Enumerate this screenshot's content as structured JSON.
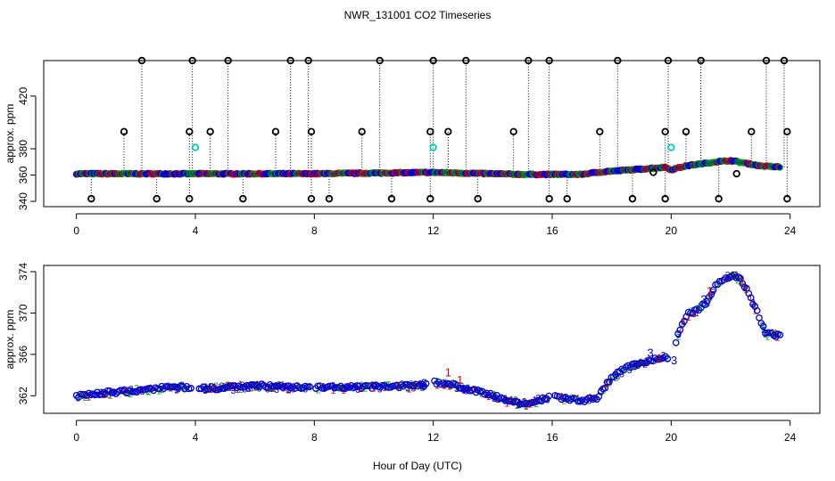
{
  "chart_data": {
    "title": "NWR_131001  CO2 Timeseries",
    "xlabel": "Hour of Day (UTC)",
    "xticks": [
      0,
      4,
      8,
      12,
      16,
      20,
      24
    ],
    "xlim": [
      -1.1,
      25
    ],
    "colors": {
      "series_1": "#d40000",
      "series_2": "#00a000",
      "series_3": "#0000cc",
      "flagged": "#00c8c8",
      "spike": "#000000",
      "marker_fill": "#0000cc"
    },
    "panels": [
      {
        "name": "top",
        "type": "scatter",
        "ylabel": "approx. ppm",
        "yticks": [
          340,
          360,
          380,
          420
        ],
        "ylim": [
          336,
          447
        ],
        "baseline": [
          [
            0,
            361
          ],
          [
            2,
            361
          ],
          [
            4,
            361
          ],
          [
            6,
            361
          ],
          [
            8,
            361
          ],
          [
            10,
            361.5
          ],
          [
            12,
            362
          ],
          [
            13,
            361.5
          ],
          [
            14,
            361
          ],
          [
            15,
            360.5
          ],
          [
            16,
            360.5
          ],
          [
            17,
            360.5
          ],
          [
            17.5,
            362
          ],
          [
            18,
            363
          ],
          [
            19,
            364.5
          ],
          [
            19.8,
            366
          ],
          [
            20,
            364
          ],
          [
            20.5,
            367
          ],
          [
            21,
            368.5
          ],
          [
            21.5,
            370
          ],
          [
            22,
            371
          ],
          [
            22.5,
            369
          ],
          [
            23,
            367
          ],
          [
            23.7,
            366
          ]
        ],
        "outliers_high": [
          2.2,
          3.9,
          5.1,
          7.2,
          7.8,
          10.2,
          12.0,
          13.1,
          15.2,
          15.9,
          18.2,
          19.9,
          21.0,
          23.2,
          23.8
        ],
        "outliers_mid": [
          1.6,
          3.8,
          4.5,
          6.7,
          7.9,
          9.6,
          11.9,
          12.5,
          14.7,
          17.6,
          19.8,
          20.5,
          22.7,
          23.9
        ],
        "outliers_low": [
          0.5,
          2.7,
          3.8,
          5.6,
          7.9,
          8.5,
          10.6,
          11.9,
          13.5,
          15.9,
          16.5,
          18.7,
          19.8,
          21.6,
          23.9
        ],
        "outliers_other": [
          [
            19.4,
            362
          ],
          [
            22.2,
            361
          ]
        ],
        "flagged": [
          [
            4.0,
            381
          ],
          [
            12.0,
            381
          ],
          [
            20.0,
            381
          ]
        ],
        "outlier_value_high": 447,
        "outlier_value_mid": 393,
        "outlier_value_low": 342
      },
      {
        "name": "bottom",
        "type": "scatter",
        "ylabel": "approx. ppm",
        "yticks": [
          362,
          366,
          370,
          374
        ],
        "ylim": [
          360.3,
          374.6
        ],
        "profile": [
          [
            0,
            362
          ],
          [
            1,
            362.3
          ],
          [
            2,
            362.5
          ],
          [
            3,
            362.8
          ],
          [
            3.9,
            362.8
          ],
          [
            4.5,
            362.7
          ],
          [
            6,
            363
          ],
          [
            7.5,
            362.8
          ],
          [
            9,
            362.8
          ],
          [
            10.5,
            362.9
          ],
          [
            11.8,
            363
          ],
          [
            12.0,
            363.3
          ],
          [
            12.5,
            363.2
          ],
          [
            13,
            362.8
          ],
          [
            13.5,
            362.4
          ],
          [
            14,
            362
          ],
          [
            14.5,
            361.6
          ],
          [
            15,
            361.2
          ],
          [
            15.5,
            361.5
          ],
          [
            16,
            362
          ],
          [
            16.5,
            361.7
          ],
          [
            17,
            361.5
          ],
          [
            17.5,
            361.8
          ],
          [
            18,
            363.8
          ],
          [
            18.5,
            364.7
          ],
          [
            19,
            365.2
          ],
          [
            19.5,
            365.6
          ],
          [
            20,
            365.8
          ],
          [
            20.3,
            368.5
          ],
          [
            20.6,
            370
          ],
          [
            21,
            370.5
          ],
          [
            21.3,
            371.5
          ],
          [
            21.5,
            372.8
          ],
          [
            22,
            373.6
          ],
          [
            22.3,
            373.4
          ],
          [
            22.6,
            372
          ],
          [
            22.9,
            370
          ],
          [
            23.2,
            368
          ],
          [
            23.7,
            367.8
          ]
        ],
        "gaps": [
          [
            3.9,
            4.1
          ],
          [
            7.9,
            8.0
          ],
          [
            11.8,
            12.0
          ],
          [
            15.9,
            16.1
          ],
          [
            19.9,
            20.1
          ]
        ],
        "annotations": [
          {
            "text": "3",
            "x": 11.7,
            "y": 363.2,
            "series": 3
          },
          {
            "text": "1",
            "x": 12.5,
            "y": 364.2,
            "series": 1
          },
          {
            "text": "1",
            "x": 12.9,
            "y": 363.5,
            "series": 1
          },
          {
            "text": "3",
            "x": 19.3,
            "y": 366.1,
            "series": 3
          },
          {
            "text": "1",
            "x": 19.6,
            "y": 365.6,
            "series": 1
          },
          {
            "text": "3",
            "x": 20.1,
            "y": 365.4,
            "series": 3
          },
          {
            "text": "3",
            "x": 21.1,
            "y": 371.3,
            "series": 3
          },
          {
            "text": "1",
            "x": 21.3,
            "y": 372.1,
            "series": 1
          }
        ]
      }
    ]
  }
}
